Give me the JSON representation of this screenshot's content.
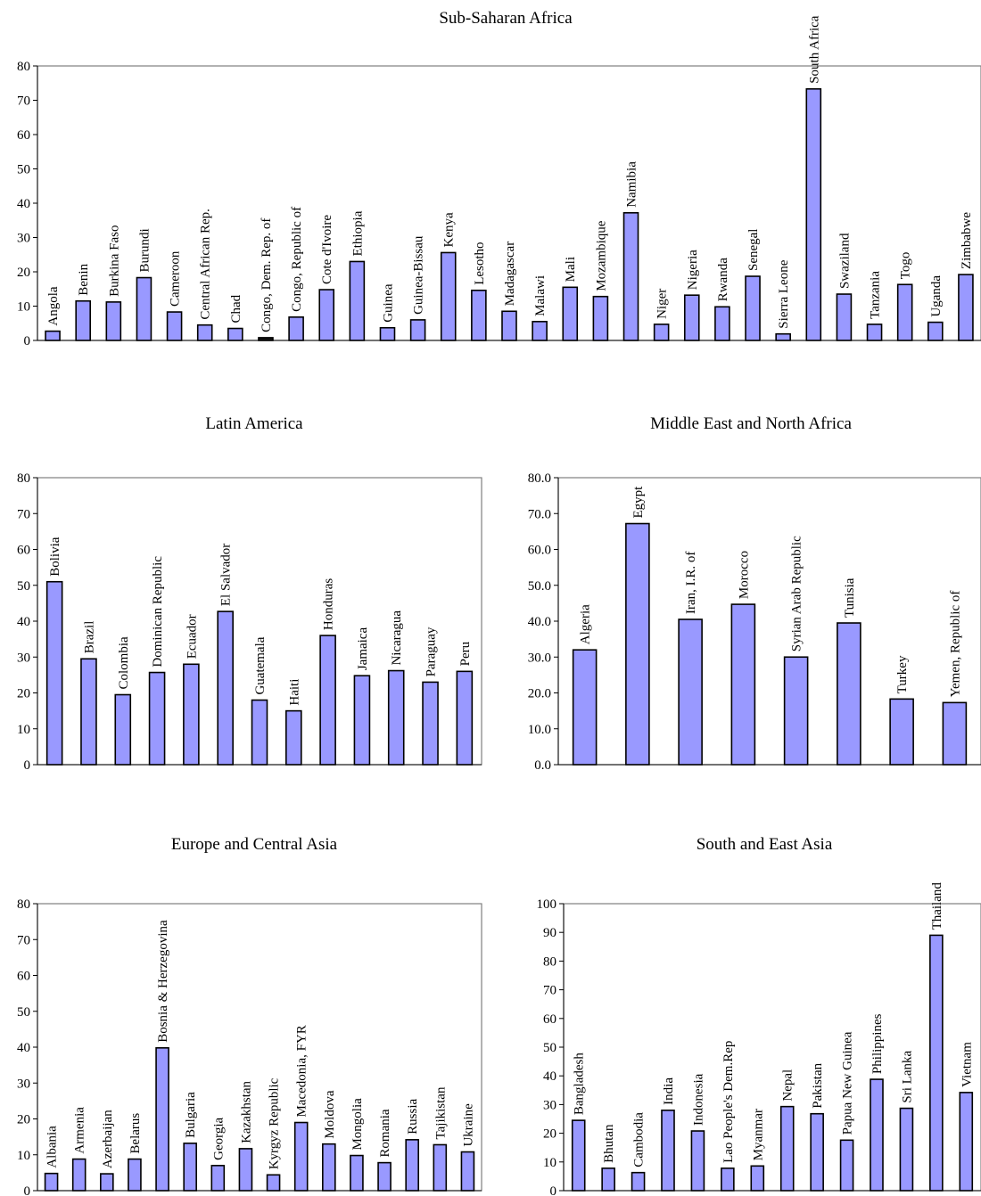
{
  "colors": {
    "bar_fill": "#9999ff",
    "bar_fill_dark": "#1a1a1a",
    "bar_stroke": "#000000",
    "frame": "#7f7f7f"
  },
  "chart_data": [
    {
      "type": "bar",
      "title": "Sub-Saharan Africa",
      "ylim": [
        0,
        80
      ],
      "yticks": [
        "0",
        "10",
        "20",
        "30",
        "40",
        "50",
        "60",
        "70",
        "80"
      ],
      "grid": false,
      "categories": [
        "Angola",
        "Benin",
        "Burkina Faso",
        "Burundi",
        "Cameroon",
        "Central African Rep.",
        "Chad",
        "Congo, Dem. Rep. of",
        "Congo, Republic of",
        "Cote d'Ivoire",
        "Ethiopia",
        "Guinea",
        "Guinea-Bissau",
        "Kenya",
        "Lesotho",
        "Madagascar",
        "Malawi",
        "Mali",
        "Mozambique",
        "Namibia",
        "Niger",
        "Nigeria",
        "Rwanda",
        "Senegal",
        "Sierra Leone",
        "South Africa",
        "Swaziland",
        "Tanzania",
        "Togo",
        "Uganda",
        "Zimbabwe"
      ],
      "values": [
        2.7,
        11.5,
        11.2,
        18.3,
        8.3,
        4.5,
        3.5,
        0.8,
        6.8,
        14.8,
        23.0,
        3.7,
        6.0,
        25.6,
        14.6,
        8.5,
        5.5,
        15.5,
        12.8,
        37.2,
        4.7,
        13.2,
        9.8,
        18.7,
        1.9,
        73.3,
        13.5,
        4.7,
        16.3,
        5.3,
        19.2
      ]
    },
    {
      "type": "bar",
      "title": "Latin America",
      "ylim": [
        0,
        80
      ],
      "yticks": [
        "0",
        "10",
        "20",
        "30",
        "40",
        "50",
        "60",
        "70",
        "80"
      ],
      "grid": false,
      "categories": [
        "Bolivia",
        "Brazil",
        "Colombia",
        "Dominican Republic",
        "Ecuador",
        "El Salvador",
        "Guatemala",
        "Haiti",
        "Honduras",
        "Jamaica",
        "Nicaragua",
        "Paraguay",
        "Peru"
      ],
      "values": [
        51.0,
        29.5,
        19.5,
        25.7,
        28.0,
        42.7,
        18.0,
        15.0,
        36.0,
        24.8,
        26.2,
        23.0,
        26.0
      ]
    },
    {
      "type": "bar",
      "title": "Middle East and North Africa",
      "ylim": [
        0,
        80
      ],
      "yticks": [
        "0.0",
        "10.0",
        "20.0",
        "30.0",
        "40.0",
        "50.0",
        "60.0",
        "70.0",
        "80.0"
      ],
      "grid": false,
      "categories": [
        "Algeria",
        "Egypt",
        "Iran, I.R. of",
        "Morocco",
        "Syrian Arab Republic",
        "Tunisia",
        "Turkey",
        "Yemen, Republic of"
      ],
      "values": [
        32.0,
        67.2,
        40.5,
        44.7,
        30.0,
        39.5,
        18.3,
        17.3
      ]
    },
    {
      "type": "bar",
      "title": "Europe and Central Asia",
      "ylim": [
        0,
        80
      ],
      "yticks": [
        "0",
        "10",
        "20",
        "30",
        "40",
        "50",
        "60",
        "70",
        "80"
      ],
      "grid": false,
      "categories": [
        "Albania",
        "Armenia",
        "Azerbaijan",
        "Belarus",
        "Bosnia & Herzegovina",
        "Bulgaria",
        "Georgia",
        "Kazakhstan",
        "Kyrgyz Republic",
        "Macedonia, FYR",
        "Moldova",
        "Mongolia",
        "Romania",
        "Russia",
        "Tajikistan",
        "Ukraine"
      ],
      "values": [
        4.8,
        8.8,
        4.7,
        8.8,
        39.8,
        13.2,
        7.0,
        11.7,
        4.4,
        19.0,
        13.0,
        9.8,
        7.8,
        14.2,
        12.8,
        10.8
      ]
    },
    {
      "type": "bar",
      "title": "South and East Asia",
      "ylim": [
        0,
        100
      ],
      "yticks": [
        "0",
        "10",
        "20",
        "30",
        "40",
        "50",
        "60",
        "70",
        "80",
        "90",
        "100"
      ],
      "grid": false,
      "categories": [
        "Bangladesh",
        "Bhutan",
        "Cambodia",
        "India",
        "Indonesia",
        "Lao People's Dem.Rep",
        "Myanmar",
        "Nepal",
        "Pakistan",
        "Papua New Guinea",
        "Philippines",
        "Sri Lanka",
        "Thailand",
        "Vietnam"
      ],
      "values": [
        24.5,
        7.8,
        6.3,
        28.0,
        20.8,
        7.8,
        8.6,
        29.3,
        26.8,
        17.6,
        38.8,
        28.7,
        89.0,
        34.2
      ]
    }
  ]
}
